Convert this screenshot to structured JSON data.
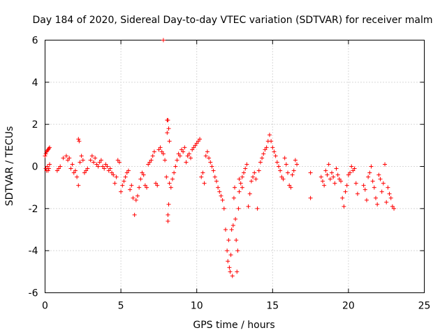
{
  "chart_data": {
    "type": "scatter",
    "title": "Day 184 of 2020, Sidereal Day-to-day VTEC variation (SDTVAR) for receiver malm",
    "xlabel": "GPS time / hours",
    "ylabel": "SDTVAR / TECUs",
    "xlim": [
      0,
      25
    ],
    "ylim": [
      -6,
      6
    ],
    "xticks": [
      0,
      5,
      10,
      15,
      20,
      25
    ],
    "yticks": [
      -6,
      -4,
      -2,
      0,
      2,
      4,
      6
    ],
    "xtick_labels": [
      "0",
      "5",
      "10",
      "15",
      "20",
      "25"
    ],
    "ytick_labels": [
      "-6",
      "-4",
      "-2",
      "0",
      "2",
      "4",
      "6"
    ],
    "grid": true,
    "marker": "+",
    "color": "#ff0000",
    "x": [
      0.0,
      0.05,
      0.1,
      0.15,
      0.2,
      0.25,
      0.3,
      0.05,
      0.1,
      0.15,
      0.2,
      0.25,
      0.3,
      0.8,
      0.9,
      1.0,
      1.2,
      1.4,
      1.5,
      1.6,
      1.7,
      1.8,
      1.9,
      2.0,
      2.1,
      2.2,
      2.25,
      2.2,
      2.3,
      2.4,
      2.5,
      2.6,
      2.7,
      2.8,
      3.0,
      3.1,
      3.2,
      3.3,
      3.4,
      3.5,
      3.6,
      3.7,
      3.8,
      3.9,
      4.0,
      4.1,
      4.2,
      4.3,
      4.4,
      4.5,
      4.6,
      4.7,
      4.8,
      4.9,
      5.0,
      5.1,
      5.2,
      5.3,
      5.4,
      5.5,
      5.6,
      5.7,
      5.8,
      5.9,
      6.0,
      6.1,
      6.2,
      6.3,
      6.4,
      6.5,
      6.6,
      6.7,
      6.8,
      6.9,
      7.0,
      7.1,
      7.2,
      7.3,
      7.4,
      7.5,
      7.6,
      7.7,
      7.8,
      7.9,
      8.0,
      8.05,
      8.05,
      8.1,
      8.1,
      8.15,
      8.2,
      8.2,
      8.3,
      8.4,
      8.5,
      8.6,
      8.7,
      8.8,
      8.9,
      9.0,
      9.1,
      9.2,
      9.3,
      9.4,
      9.5,
      9.6,
      9.7,
      9.8,
      9.9,
      10.0,
      10.1,
      10.2,
      10.3,
      10.4,
      10.5,
      10.6,
      10.7,
      10.8,
      10.9,
      11.0,
      11.1,
      11.2,
      11.3,
      11.4,
      11.5,
      11.6,
      11.7,
      11.8,
      11.9,
      12.0,
      12.05,
      12.1,
      12.15,
      12.2,
      12.25,
      12.3,
      12.35,
      12.4,
      12.45,
      12.5,
      12.55,
      12.6,
      12.65,
      12.7,
      12.75,
      12.8,
      12.9,
      13.0,
      13.1,
      13.2,
      13.3,
      13.4,
      13.5,
      13.6,
      13.7,
      13.8,
      13.9,
      14.0,
      14.1,
      14.2,
      14.3,
      14.4,
      14.5,
      14.6,
      14.7,
      14.8,
      14.9,
      15.0,
      15.1,
      15.2,
      15.3,
      15.4,
      15.5,
      15.6,
      15.7,
      15.8,
      15.9,
      16.0,
      16.1,
      16.2,
      16.3,
      16.4,
      16.5,
      16.6,
      17.5,
      17.5,
      18.2,
      18.3,
      18.4,
      18.5,
      18.6,
      18.7,
      18.8,
      18.9,
      19.0,
      19.1,
      19.2,
      19.3,
      19.4,
      19.5,
      19.6,
      19.7,
      19.8,
      19.9,
      20.0,
      20.1,
      20.2,
      20.3,
      20.4,
      20.5,
      20.6,
      21.0,
      21.1,
      21.2,
      21.3,
      21.4,
      21.5,
      21.6,
      21.7,
      21.8,
      21.9,
      22.0,
      22.1,
      22.2,
      22.3,
      22.4,
      22.5,
      22.6,
      22.7,
      22.8,
      22.9,
      23.0,
      7.8,
      8.1,
      8.15,
      13.0,
      12.8
    ],
    "y": [
      0.5,
      0.6,
      0.7,
      0.75,
      0.8,
      0.85,
      0.9,
      -0.1,
      -0.2,
      0.0,
      -0.2,
      -0.1,
      0.1,
      -0.2,
      -0.1,
      0.0,
      0.4,
      0.5,
      0.3,
      0.4,
      -0.1,
      0.1,
      -0.3,
      -0.2,
      -0.5,
      1.3,
      1.2,
      -0.9,
      0.2,
      0.5,
      0.3,
      -0.3,
      -0.2,
      -0.1,
      0.3,
      0.5,
      0.2,
      0.4,
      0.1,
      0.0,
      0.2,
      0.3,
      0.0,
      -0.1,
      0.1,
      0.0,
      -0.2,
      -0.1,
      -0.3,
      -0.4,
      -0.8,
      -0.5,
      0.3,
      0.2,
      -1.2,
      -0.9,
      -0.7,
      -0.5,
      -0.3,
      -0.2,
      -1.1,
      -0.9,
      -1.5,
      -2.3,
      -1.6,
      -1.4,
      -1.0,
      -0.6,
      -0.3,
      -0.4,
      -0.9,
      -1.0,
      0.1,
      0.2,
      0.3,
      0.5,
      0.7,
      -0.8,
      -0.9,
      0.8,
      0.9,
      0.7,
      0.6,
      0.3,
      -0.5,
      2.2,
      1.6,
      -2.6,
      -2.3,
      -1.8,
      1.2,
      -0.8,
      -1.0,
      -0.6,
      -0.3,
      0.0,
      0.3,
      0.6,
      0.5,
      0.8,
      0.7,
      0.9,
      0.2,
      0.5,
      0.6,
      0.4,
      0.8,
      0.9,
      1.0,
      1.1,
      1.2,
      1.3,
      -0.5,
      -0.3,
      -0.8,
      0.5,
      0.7,
      0.4,
      0.2,
      0.0,
      -0.2,
      -0.5,
      -0.7,
      -1.0,
      -1.2,
      -1.4,
      -1.6,
      -2.0,
      -3.0,
      -4.0,
      -4.5,
      -3.5,
      -4.8,
      -5.0,
      -4.2,
      -3.0,
      -5.2,
      -2.8,
      -1.5,
      -1.0,
      -2.5,
      -3.5,
      -5.0,
      -4.0,
      -2.0,
      -1.2,
      -0.8,
      -0.5,
      -0.3,
      -0.1,
      0.1,
      -1.9,
      -1.3,
      -0.7,
      -0.5,
      -0.3,
      -0.6,
      -2.0,
      -0.2,
      0.2,
      0.4,
      0.6,
      0.8,
      0.9,
      1.2,
      1.5,
      1.2,
      0.9,
      0.7,
      0.5,
      0.2,
      0.0,
      -0.2,
      -0.5,
      -0.6,
      0.4,
      0.1,
      -0.3,
      -0.9,
      -1.0,
      -0.4,
      -0.2,
      0.3,
      0.1,
      -1.5,
      -0.3,
      -0.5,
      -0.7,
      -0.9,
      -0.2,
      -0.4,
      0.1,
      -0.6,
      -0.3,
      -0.5,
      -0.8,
      -0.1,
      -0.4,
      -0.6,
      -0.7,
      -1.5,
      -1.9,
      -1.2,
      -0.9,
      -0.4,
      -0.3,
      0.0,
      -0.2,
      -0.1,
      -0.8,
      -1.3,
      -0.9,
      -1.1,
      -1.6,
      -0.5,
      -0.3,
      0.0,
      -0.7,
      -1.0,
      -1.5,
      -1.8,
      -0.4,
      -0.6,
      -1.2,
      -0.8,
      0.1,
      -1.7,
      -1.0,
      -1.3,
      -1.5,
      -1.9,
      -2.0,
      6.0,
      2.2,
      1.8,
      -1.0,
      -0.6
    ]
  }
}
